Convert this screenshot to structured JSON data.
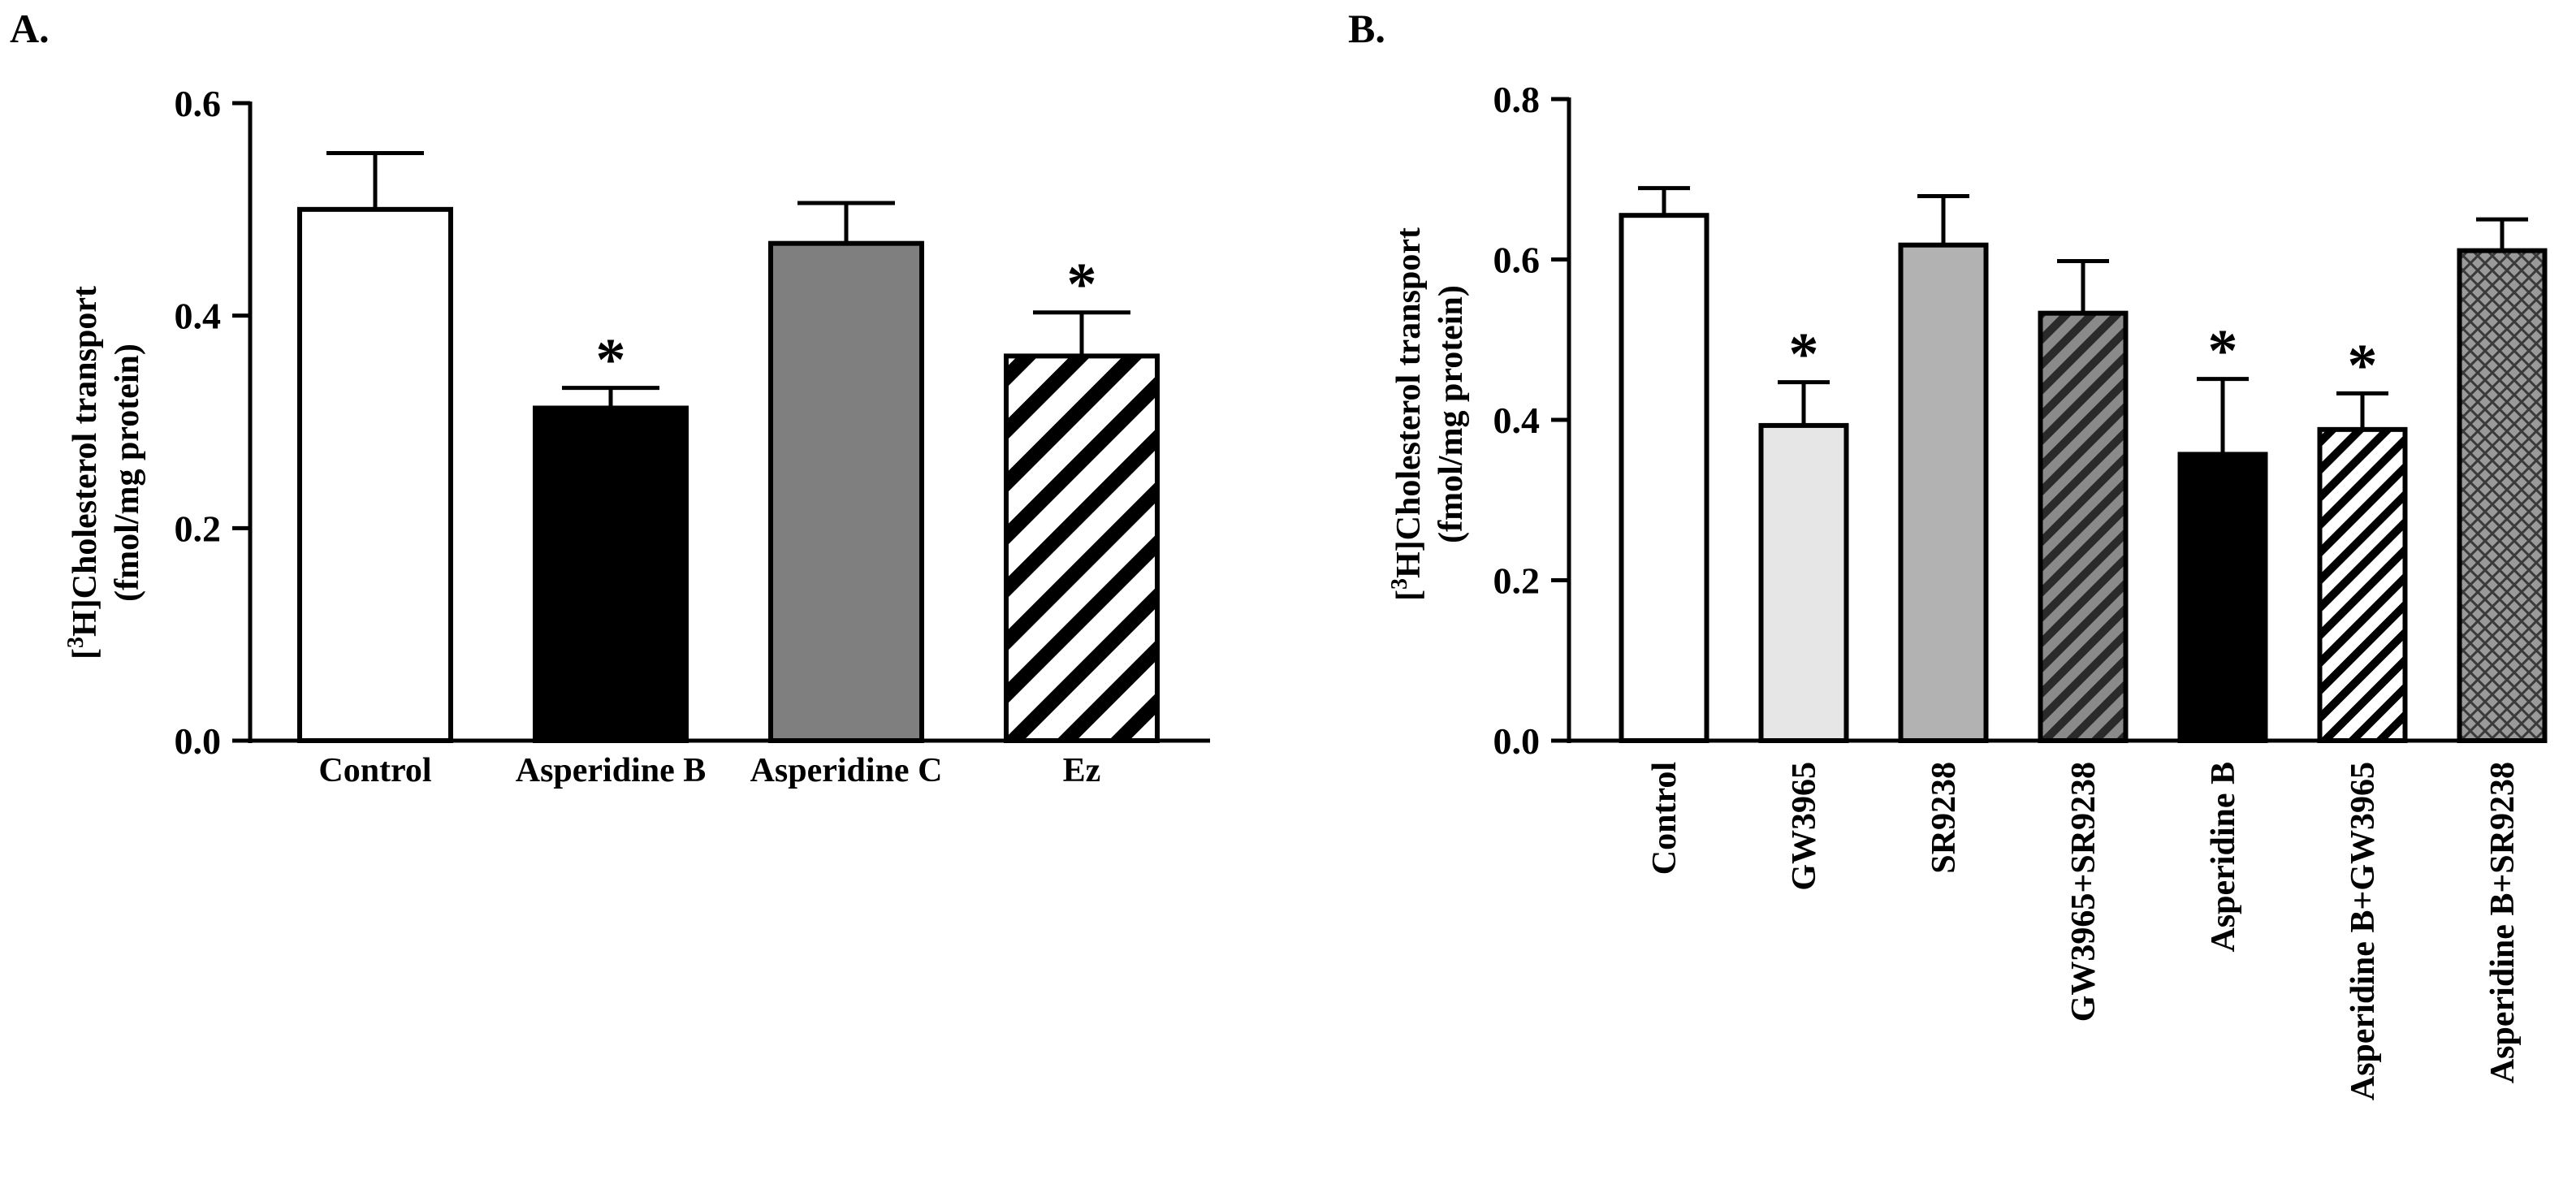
{
  "figure": {
    "panels": [
      "A.",
      "B."
    ]
  },
  "chart_data": [
    {
      "type": "bar",
      "panel": "A.",
      "title": "",
      "xlabel": "",
      "ylabel_lines": [
        "[3H]Cholesterol transport",
        "(fmol/mg protein)"
      ],
      "ylabel_prefix": "[",
      "ylabel_sup": "3",
      "ylabel_rest": "H]Cholesterol transport",
      "ylabel_line2": "(fmol/mg protein)",
      "ylim": [
        0,
        0.6
      ],
      "yticks": [
        0.0,
        0.2,
        0.4,
        0.6
      ],
      "ytick_labels": [
        "0.0",
        "0.2",
        "0.4",
        "0.6"
      ],
      "categories": [
        "Control",
        "Asperidine B",
        "Asperidine C",
        "Ez"
      ],
      "values": [
        0.5,
        0.313,
        0.468,
        0.362
      ],
      "errors": [
        0.053,
        0.019,
        0.038,
        0.041
      ],
      "significance": [
        "",
        "*",
        "",
        "*"
      ],
      "fills": [
        "white",
        "black",
        "gray",
        "diag-black"
      ]
    },
    {
      "type": "bar",
      "panel": "B.",
      "title": "",
      "xlabel": "",
      "ylabel_lines": [
        "[3H]Cholesterol transport",
        "(fmol/mg protein)"
      ],
      "ylabel_prefix": "[",
      "ylabel_sup": "3",
      "ylabel_rest": "H]Cholesterol transport",
      "ylabel_line2": "(fmol/mg protein)",
      "ylim": [
        0,
        0.8
      ],
      "yticks": [
        0.0,
        0.2,
        0.4,
        0.6,
        0.8
      ],
      "ytick_labels": [
        "0.0",
        "0.2",
        "0.4",
        "0.6",
        "0.8"
      ],
      "categories": [
        "Control",
        "GW3965",
        "SR9238",
        "GW3965+SR9238",
        "Asperidine B",
        "Asperidine B+GW3965",
        "Asperidine B+SR9238"
      ],
      "values": [
        0.655,
        0.393,
        0.618,
        0.533,
        0.357,
        0.388,
        0.611
      ],
      "errors": [
        0.034,
        0.054,
        0.061,
        0.065,
        0.094,
        0.045,
        0.039
      ],
      "significance": [
        "",
        "*",
        "",
        "",
        "*",
        "*",
        ""
      ],
      "fills": [
        "white",
        "lightgray",
        "midgray",
        "diag-dark",
        "black",
        "diag-black-fine",
        "crosshatch"
      ]
    }
  ]
}
